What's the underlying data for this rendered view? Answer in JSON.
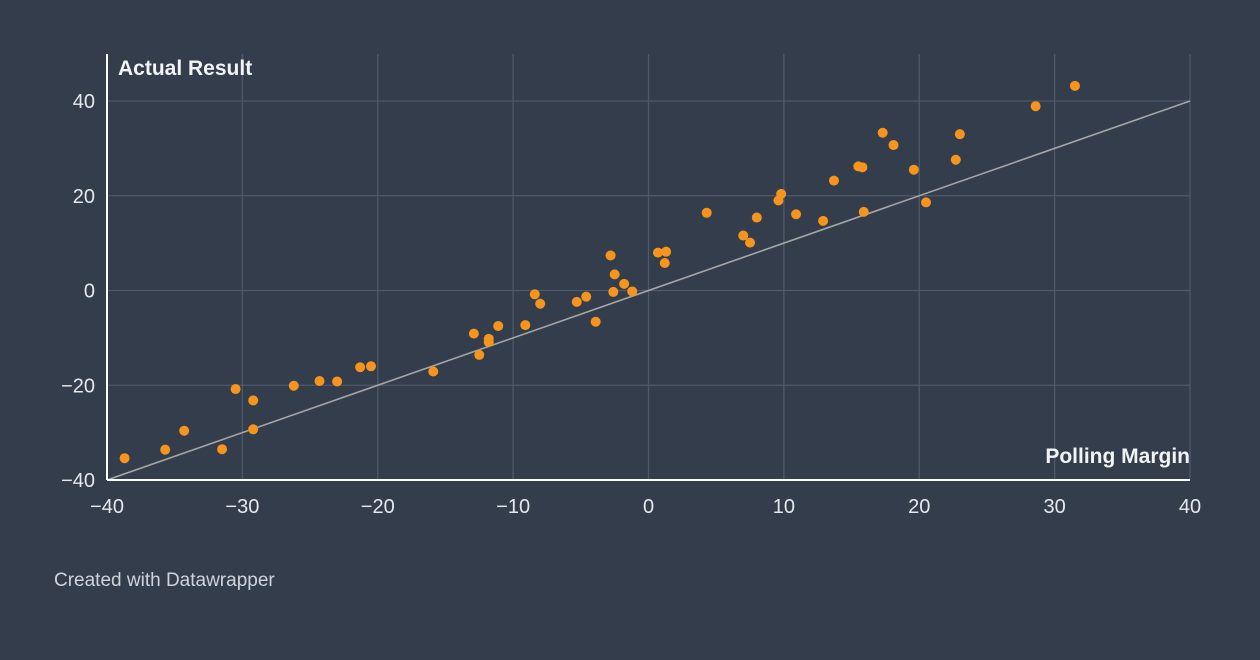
{
  "chart_data": {
    "type": "scatter",
    "xlabel": "Polling Margin",
    "ylabel": "Actual Result",
    "xlim": [
      -40,
      40
    ],
    "ylim": [
      -40,
      40
    ],
    "x_ticks": [
      "−40",
      "−30",
      "−20",
      "−10",
      "0",
      "10",
      "20",
      "30",
      "40"
    ],
    "y_ticks": [
      "−40",
      "−20",
      "0",
      "20",
      "40"
    ],
    "grid": true,
    "reference_line": {
      "type": "y=x",
      "color": "#a6a6a6"
    },
    "point_color": "#f7941d",
    "points": [
      {
        "x": -38.7,
        "y": -35.4
      },
      {
        "x": -35.7,
        "y": -33.6
      },
      {
        "x": -34.3,
        "y": -29.6
      },
      {
        "x": -31.5,
        "y": -33.5
      },
      {
        "x": -30.5,
        "y": -20.8
      },
      {
        "x": -29.2,
        "y": -23.2
      },
      {
        "x": -29.2,
        "y": -29.3
      },
      {
        "x": -26.2,
        "y": -20.1
      },
      {
        "x": -24.3,
        "y": -19.1
      },
      {
        "x": -23.0,
        "y": -19.2
      },
      {
        "x": -21.3,
        "y": -16.2
      },
      {
        "x": -20.5,
        "y": -16.0
      },
      {
        "x": -15.9,
        "y": -17.1
      },
      {
        "x": -12.9,
        "y": -9.1
      },
      {
        "x": -12.5,
        "y": -13.6
      },
      {
        "x": -11.8,
        "y": -10.2
      },
      {
        "x": -11.8,
        "y": -10.9
      },
      {
        "x": -11.1,
        "y": -7.5
      },
      {
        "x": -9.1,
        "y": -7.3
      },
      {
        "x": -8.4,
        "y": -0.8
      },
      {
        "x": -8.0,
        "y": -2.8
      },
      {
        "x": -5.3,
        "y": -2.4
      },
      {
        "x": -4.6,
        "y": -1.3
      },
      {
        "x": -3.9,
        "y": -6.6
      },
      {
        "x": -2.8,
        "y": 7.4
      },
      {
        "x": -2.6,
        "y": -0.3
      },
      {
        "x": -2.5,
        "y": 3.4
      },
      {
        "x": -1.8,
        "y": 1.4
      },
      {
        "x": -1.2,
        "y": -0.2
      },
      {
        "x": 0.7,
        "y": 8.0
      },
      {
        "x": 1.2,
        "y": 5.8
      },
      {
        "x": 1.3,
        "y": 8.2
      },
      {
        "x": 4.3,
        "y": 16.4
      },
      {
        "x": 7.0,
        "y": 11.6
      },
      {
        "x": 7.5,
        "y": 10.1
      },
      {
        "x": 8.0,
        "y": 15.4
      },
      {
        "x": 9.6,
        "y": 19.0
      },
      {
        "x": 9.8,
        "y": 20.4
      },
      {
        "x": 10.9,
        "y": 16.1
      },
      {
        "x": 12.9,
        "y": 14.7
      },
      {
        "x": 13.7,
        "y": 23.2
      },
      {
        "x": 15.5,
        "y": 26.2
      },
      {
        "x": 15.8,
        "y": 26.0
      },
      {
        "x": 15.9,
        "y": 16.6
      },
      {
        "x": 17.3,
        "y": 33.3
      },
      {
        "x": 18.1,
        "y": 30.7
      },
      {
        "x": 19.6,
        "y": 25.5
      },
      {
        "x": 20.5,
        "y": 18.6
      },
      {
        "x": 22.7,
        "y": 27.6
      },
      {
        "x": 23.0,
        "y": 33.0
      },
      {
        "x": 28.6,
        "y": 38.9
      },
      {
        "x": 31.5,
        "y": 43.2
      }
    ]
  },
  "footer": {
    "credit": "Created with Datawrapper"
  }
}
